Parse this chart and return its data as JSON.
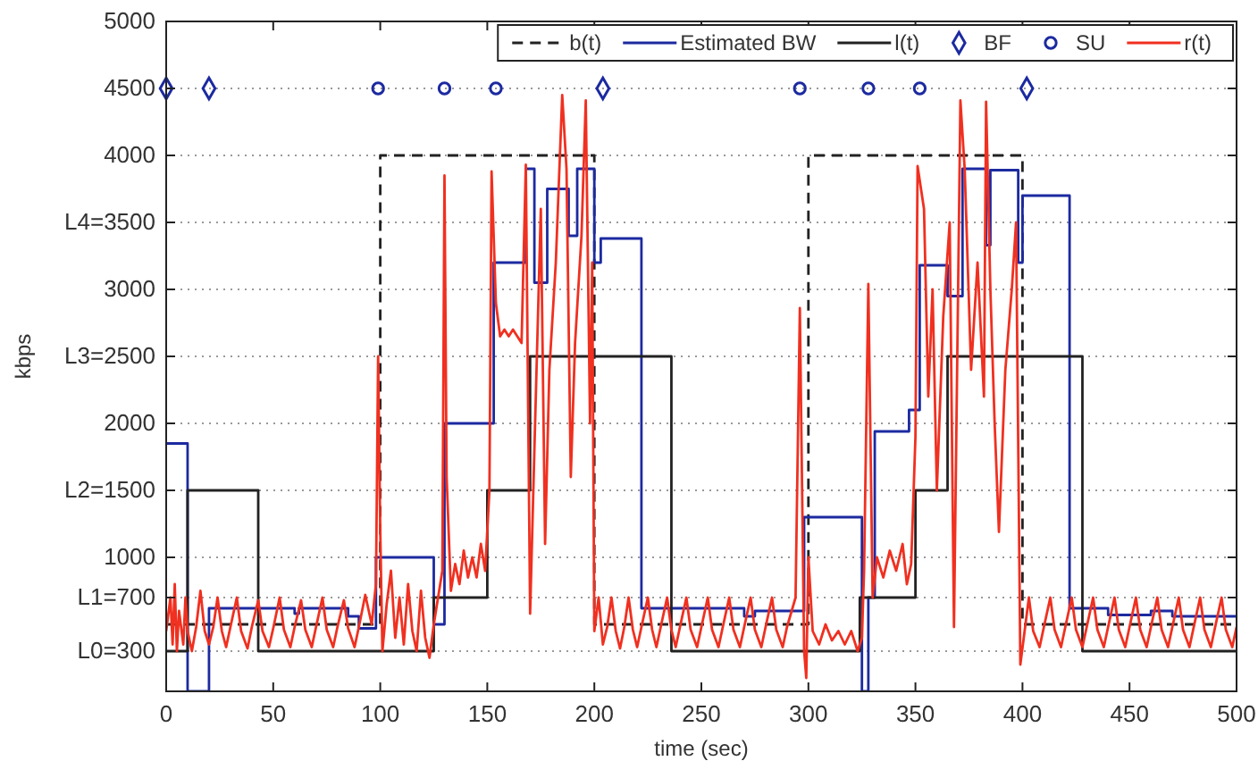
{
  "chart_data": {
    "type": "line",
    "xlabel": "time (sec)",
    "ylabel": "kbps",
    "xlim": [
      0,
      500
    ],
    "xticks": [
      0,
      50,
      100,
      150,
      200,
      250,
      300,
      350,
      400,
      450,
      500
    ],
    "ylim": [
      0,
      5000
    ],
    "yticks": [
      {
        "value": 300,
        "label": "L0=300"
      },
      {
        "value": 700,
        "label": "L1=700"
      },
      1000,
      {
        "value": 1500,
        "label": "L2=1500"
      },
      2000,
      {
        "value": 2500,
        "label": "L3=2500"
      },
      3000,
      {
        "value": 3500,
        "label": "L4=3500"
      },
      4000,
      4500,
      5000
    ],
    "grid": "y",
    "legend": "top right",
    "series": [
      {
        "name": "b(t)",
        "type": "step",
        "line_style": "dashed",
        "color": "#222222",
        "x": [
          0,
          100,
          200,
          300,
          400,
          500
        ],
        "values": [
          500,
          4000,
          500,
          4000,
          500,
          500
        ]
      },
      {
        "name": "Estimated BW",
        "type": "step",
        "line_style": "solid",
        "color": "#1c2aa0",
        "x": [
          0,
          10,
          20,
          60,
          62,
          85,
          90,
          98,
          125,
          130,
          153,
          168,
          172,
          178,
          188,
          192,
          200,
          203,
          222,
          270,
          275,
          298,
          325,
          328,
          331,
          347,
          352,
          365,
          372,
          383,
          385,
          398,
          400,
          422,
          440,
          460,
          470,
          500
        ],
        "values": [
          1850,
          0,
          620,
          580,
          620,
          560,
          470,
          1000,
          500,
          2000,
          3200,
          3900,
          3050,
          3750,
          3400,
          3900,
          3200,
          3380,
          620,
          560,
          600,
          1300,
          0,
          700,
          1940,
          2100,
          3180,
          2950,
          3900,
          3330,
          3890,
          3200,
          3700,
          620,
          570,
          600,
          560,
          560
        ]
      },
      {
        "name": "l(t)",
        "type": "step",
        "line_style": "solid",
        "color": "#222222",
        "x": [
          0,
          10,
          43,
          125,
          150,
          170,
          236,
          324,
          350,
          365,
          428,
          500
        ],
        "values": [
          300,
          1500,
          300,
          700,
          1500,
          2500,
          300,
          700,
          1500,
          2500,
          300,
          300
        ]
      },
      {
        "name": "BF",
        "type": "scatter",
        "marker": "diamond",
        "color": "#1c2aa0",
        "x": [
          0,
          20,
          204,
          402
        ],
        "values": [
          4500,
          4500,
          4500,
          4500
        ]
      },
      {
        "name": "SU",
        "type": "scatter",
        "marker": "circle",
        "color": "#1c2aa0",
        "x": [
          99,
          130,
          154,
          296,
          328,
          352
        ],
        "values": [
          4500,
          4500,
          4500,
          4500,
          4500,
          4500
        ]
      },
      {
        "name": "r(t)",
        "type": "line",
        "line_style": "solid",
        "color": "#f03020",
        "x": [
          0,
          2,
          3,
          4,
          5,
          6,
          8,
          9,
          10,
          12,
          14,
          16,
          18,
          20,
          22,
          24,
          26,
          28,
          30,
          33,
          35,
          38,
          40,
          43,
          45,
          48,
          50,
          53,
          55,
          58,
          60,
          63,
          65,
          68,
          70,
          73,
          75,
          78,
          80,
          83,
          85,
          88,
          90,
          93,
          96,
          98,
          99,
          100,
          101,
          103,
          105,
          107,
          109,
          111,
          113,
          115,
          117,
          119,
          121,
          123,
          125,
          127,
          129,
          130,
          131,
          133,
          135,
          137,
          139,
          141,
          143,
          145,
          147,
          149,
          151,
          152,
          154,
          156,
          158,
          160,
          162,
          164,
          166,
          168,
          170,
          172,
          175,
          177,
          179,
          182,
          185,
          187,
          189,
          191,
          194,
          196,
          198,
          199,
          200,
          202,
          204,
          206,
          208,
          210,
          212,
          214,
          216,
          218,
          220,
          222,
          225,
          227,
          229,
          231,
          234,
          236,
          238,
          240,
          243,
          245,
          248,
          250,
          253,
          255,
          258,
          260,
          263,
          265,
          268,
          270,
          273,
          275,
          278,
          280,
          283,
          285,
          288,
          290,
          294,
          296,
          298,
          299,
          300,
          302,
          305,
          308,
          311,
          314,
          317,
          320,
          323,
          325,
          326,
          328,
          330,
          332,
          335,
          338,
          341,
          344,
          346,
          348,
          350,
          351,
          354,
          356,
          358,
          360,
          363,
          366,
          368,
          371,
          373,
          376,
          379,
          382,
          383,
          385,
          387,
          389,
          392,
          395,
          397,
          399,
          401,
          403,
          405,
          408,
          410,
          413,
          415,
          418,
          420,
          423,
          425,
          428,
          430,
          433,
          435,
          438,
          440,
          443,
          445,
          448,
          450,
          453,
          455,
          458,
          460,
          463,
          465,
          468,
          470,
          473,
          475,
          478,
          480,
          483,
          485,
          488,
          490,
          493,
          495,
          498,
          500
        ],
        "values": [
          450,
          700,
          350,
          800,
          300,
          600,
          350,
          700,
          450,
          300,
          480,
          750,
          450,
          350,
          480,
          700,
          450,
          330,
          480,
          700,
          450,
          320,
          480,
          680,
          450,
          330,
          470,
          700,
          460,
          330,
          480,
          680,
          460,
          330,
          480,
          700,
          460,
          330,
          480,
          680,
          470,
          330,
          480,
          720,
          500,
          800,
          2500,
          1200,
          300,
          650,
          900,
          400,
          700,
          350,
          800,
          450,
          300,
          750,
          400,
          250,
          500,
          700,
          900,
          3850,
          1600,
          750,
          950,
          800,
          1050,
          850,
          1000,
          850,
          1100,
          900,
          1500,
          3880,
          2900,
          2650,
          2700,
          2650,
          2700,
          2650,
          2600,
          3930,
          580,
          1800,
          3600,
          1100,
          2400,
          3200,
          4450,
          3900,
          1600,
          2600,
          3400,
          4410,
          2000,
          3200,
          450,
          700,
          350,
          480,
          700,
          450,
          320,
          480,
          700,
          460,
          330,
          480,
          700,
          460,
          330,
          480,
          700,
          460,
          330,
          480,
          700,
          460,
          330,
          480,
          700,
          460,
          330,
          480,
          700,
          460,
          330,
          480,
          700,
          460,
          330,
          480,
          700,
          460,
          330,
          480,
          700,
          2860,
          300,
          100,
          1000,
          450,
          350,
          500,
          380,
          450,
          350,
          450,
          300,
          400,
          900,
          3040,
          700,
          1000,
          850,
          1050,
          900,
          1100,
          800,
          950,
          1900,
          3920,
          3600,
          2200,
          3000,
          1500,
          2800,
          3500,
          480,
          4410,
          3900,
          2400,
          3200,
          2200,
          4400,
          3000,
          2000,
          1190,
          2400,
          3000,
          3500,
          200,
          450,
          700,
          450,
          330,
          480,
          700,
          460,
          330,
          480,
          700,
          460,
          330,
          480,
          700,
          460,
          330,
          480,
          700,
          460,
          330,
          480,
          700,
          460,
          330,
          480,
          700,
          460,
          330,
          480,
          700,
          460,
          330,
          480,
          700,
          460,
          330,
          480,
          700,
          460,
          330,
          480
        ]
      }
    ]
  }
}
